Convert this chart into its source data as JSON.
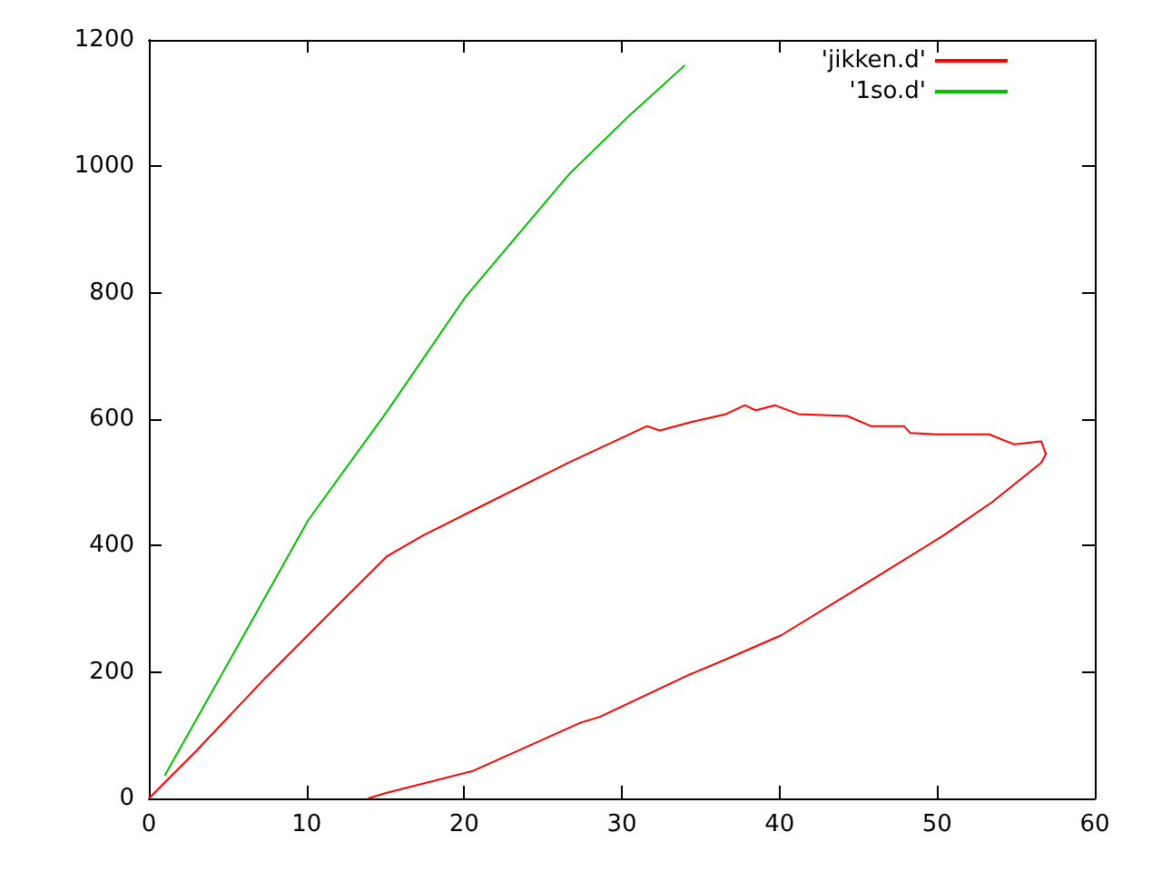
{
  "chart_data": {
    "type": "line",
    "xlim": [
      0,
      60
    ],
    "xticks": [
      0,
      10,
      20,
      30,
      40,
      50,
      60
    ],
    "ylim": [
      0,
      1200
    ],
    "yticks": [
      0,
      200,
      400,
      600,
      800,
      1000,
      1200
    ],
    "grid": false,
    "legend": "top right",
    "marker": "none",
    "line_style": "solid",
    "series": [
      {
        "name": "'jikken.d'",
        "color": "#ff0000",
        "x": [
          0,
          3,
          7.4,
          12,
          15.1,
          17.4,
          20.1,
          26.6,
          31.6,
          32.4,
          34.5,
          36.6,
          37.8,
          38.5,
          39.7,
          41.2,
          44.3,
          45.8,
          47.9,
          48.3,
          50,
          53.3,
          54.9,
          56.6,
          56.9,
          56.6,
          53.5,
          50.4,
          45.8,
          40.1,
          36.6,
          34.3,
          28.6,
          27.4,
          20.5,
          15.1,
          13.9
        ],
        "values": [
          0,
          75,
          191,
          306,
          383,
          416,
          450,
          531,
          589,
          582,
          596,
          608,
          622,
          614,
          622,
          608,
          605,
          589,
          589,
          578,
          576,
          576,
          560,
          565,
          545,
          531,
          469,
          416,
          345,
          258,
          220,
          196,
          129,
          120,
          43,
          9,
          0
        ]
      },
      {
        "name": "'1so.d'",
        "color": "#00c000",
        "x": [
          1,
          5.5,
          10.1,
          15.1,
          20.1,
          26.6,
          30.5,
          34
        ],
        "values": [
          36,
          235,
          440,
          612,
          794,
          986,
          1081,
          1160
        ]
      }
    ]
  }
}
